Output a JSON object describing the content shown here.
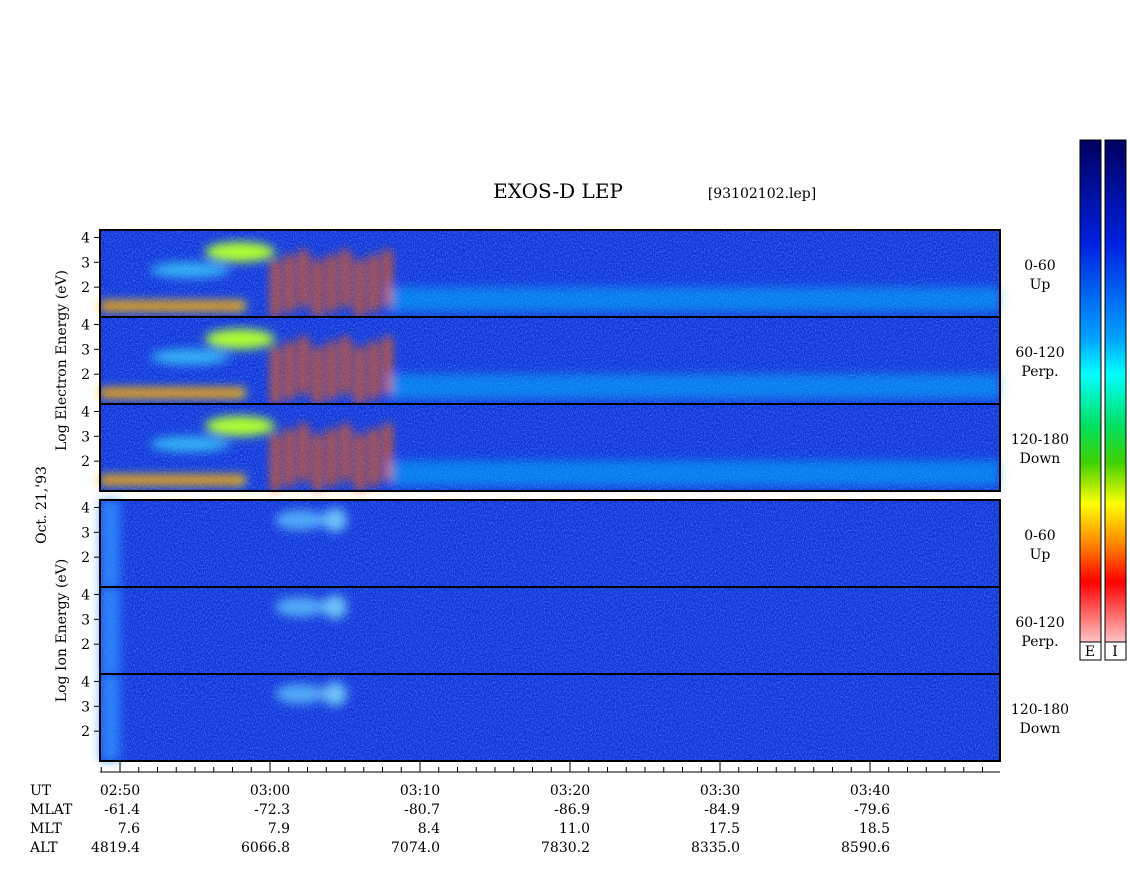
{
  "header": {
    "title": "EXOS-D LEP",
    "file": "[93102102.lep]",
    "date": "Oct. 21,'93"
  },
  "energy_axis": {
    "ylim": [
      0.8,
      4.3
    ],
    "yticks": [
      2,
      3,
      4
    ]
  },
  "groups": [
    {
      "axis_label": "Log Electron Energy (eV)",
      "panels": [
        {
          "pitch": "0-60",
          "direction": "Up"
        },
        {
          "pitch": "60-120",
          "direction": "Perp."
        },
        {
          "pitch": "120-180",
          "direction": "Down"
        }
      ]
    },
    {
      "axis_label": "Log Ion Energy (eV)",
      "panels": [
        {
          "pitch": "0-60",
          "direction": "Up"
        },
        {
          "pitch": "60-120",
          "direction": "Perp."
        },
        {
          "pitch": "120-180",
          "direction": "Down"
        }
      ]
    }
  ],
  "orbit": {
    "rows": [
      "UT",
      "MLAT",
      "MLT",
      "ALT"
    ],
    "columns": [
      [
        "02:50",
        "-61.4",
        "7.6",
        "4819.4"
      ],
      [
        "03:00",
        "-72.3",
        "7.9",
        "6066.8"
      ],
      [
        "03:10",
        "-80.7",
        "8.4",
        "7074.0"
      ],
      [
        "03:20",
        "-86.9",
        "11.0",
        "7830.2"
      ],
      [
        "03:30",
        "-84.9",
        "17.5",
        "8335.0"
      ],
      [
        "03:40",
        "-79.6",
        "18.5",
        "8590.6"
      ]
    ]
  },
  "colorbars": [
    "E",
    "I"
  ]
}
